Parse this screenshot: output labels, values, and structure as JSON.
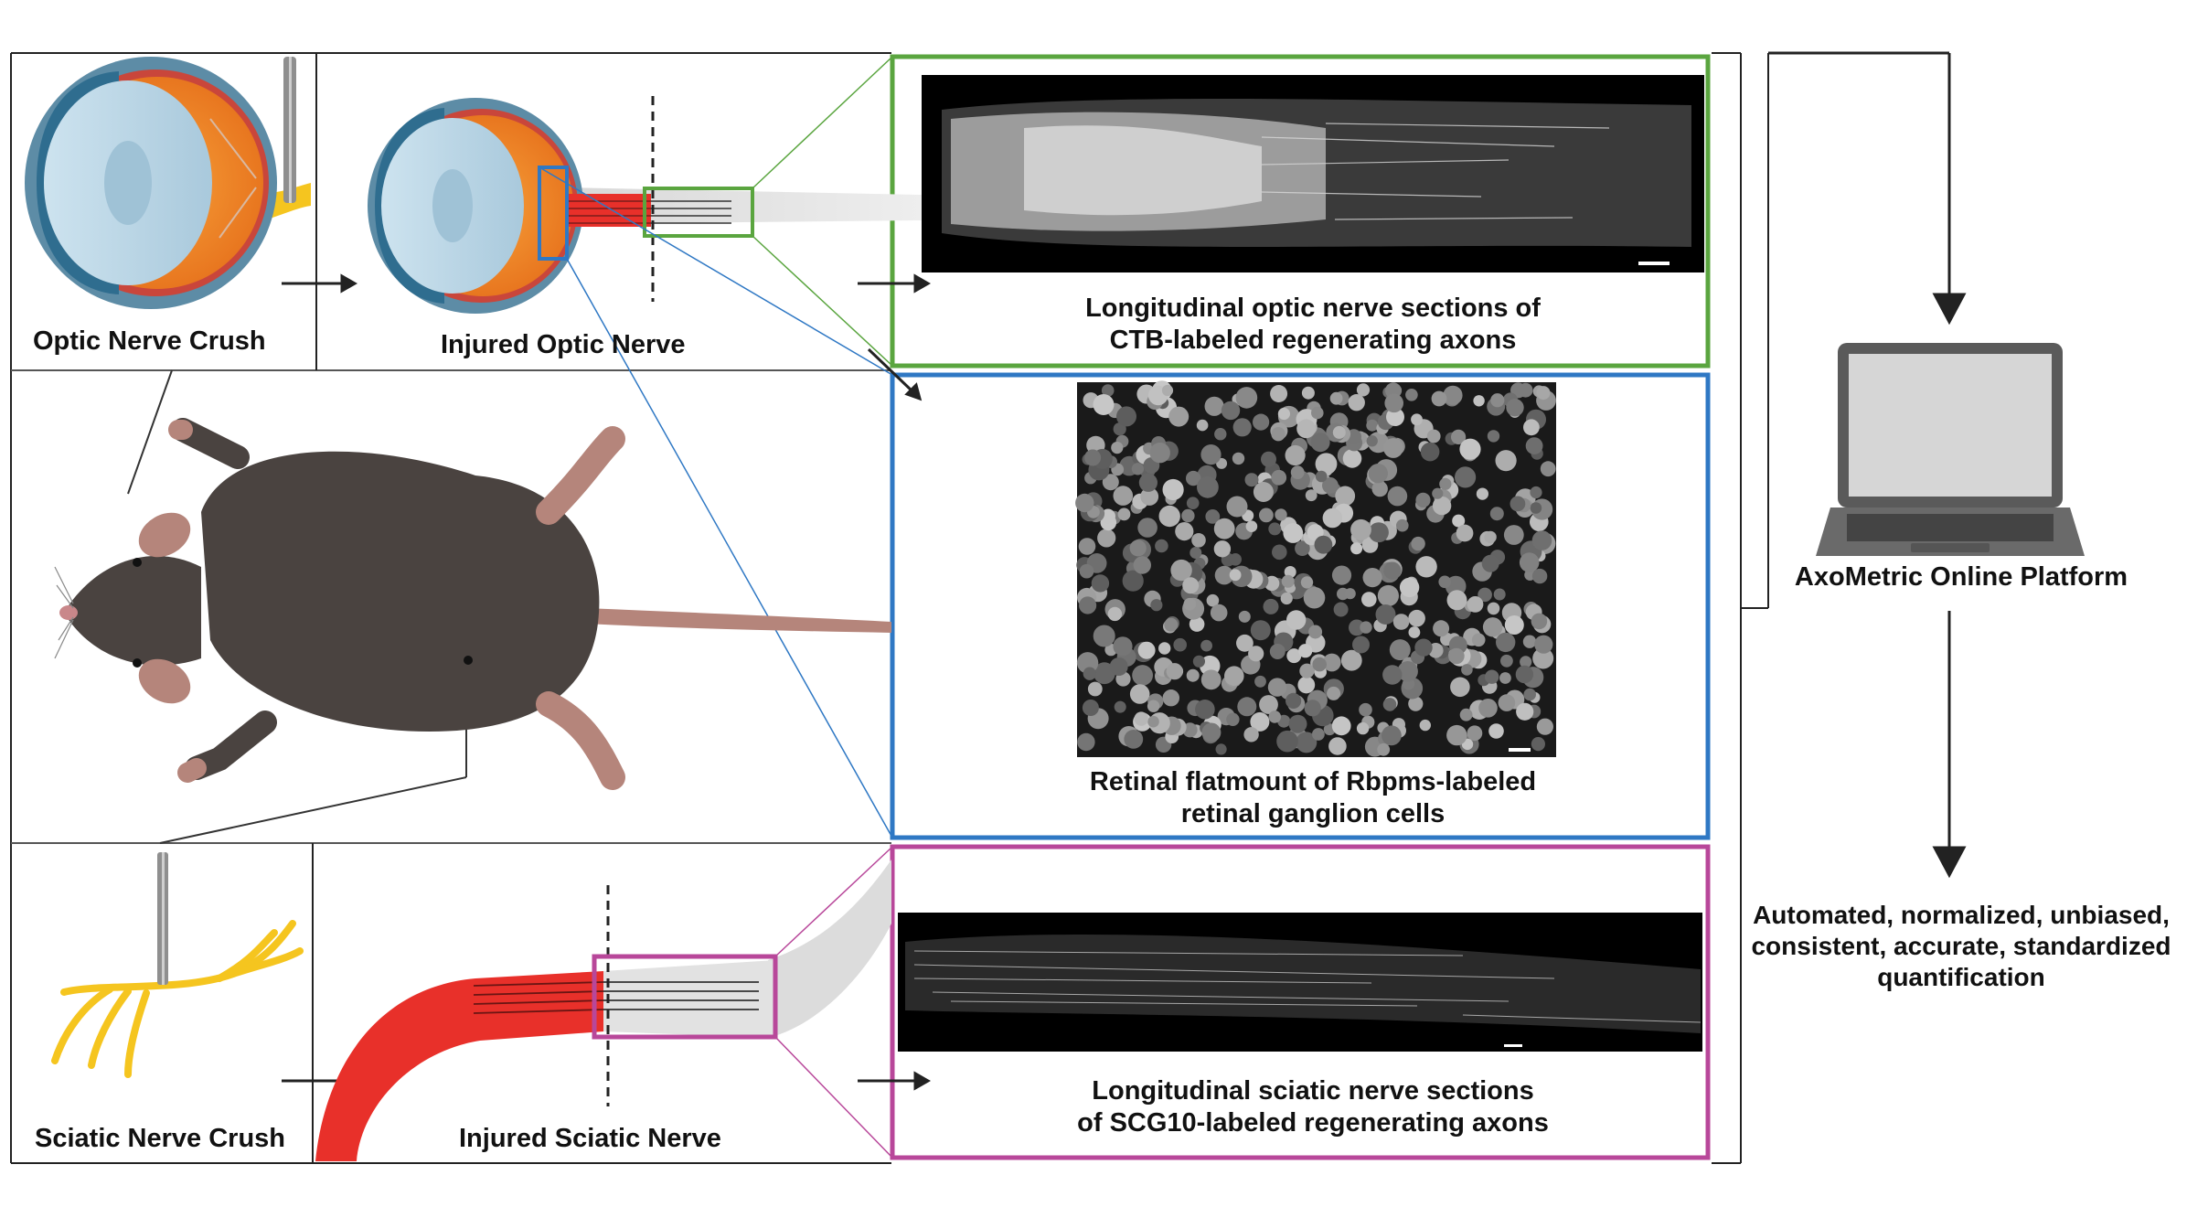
{
  "labels": {
    "optic_crush": "Optic Nerve Crush",
    "injured_optic": "Injured Optic Nerve",
    "sciatic_crush": "Sciatic Nerve Crush",
    "injured_sciatic": "Injured Sciatic Nerve",
    "optic_sections_line1": "Longitudinal optic nerve sections of",
    "optic_sections_line2": "CTB-labeled regenerating axons",
    "retina_line1": "Retinal flatmount of Rbpms-labeled",
    "retina_line2": "retinal ganglion cells",
    "sciatic_sections_line1": "Longitudinal sciatic nerve sections",
    "sciatic_sections_line2": "of SCG10-labeled regenerating axons",
    "platform": "AxoMetric Online Platform",
    "output_line1": "Automated, normalized, unbiased,",
    "output_line2": "consistent, accurate, standardized",
    "output_line3": "quantification"
  },
  "colors": {
    "green_frame": "#5aa53f",
    "blue_frame": "#2f78c4",
    "magenta_frame": "#b8479a",
    "nerve_red": "#e8302a",
    "nerve_yellow": "#f5c51f",
    "mouse_body": "#4a4340",
    "mouse_pink": "#b5857b"
  },
  "icons": [
    "eye-icon",
    "forceps-icon",
    "mouse-icon",
    "laptop-icon",
    "sciatic-nerve-icon"
  ]
}
